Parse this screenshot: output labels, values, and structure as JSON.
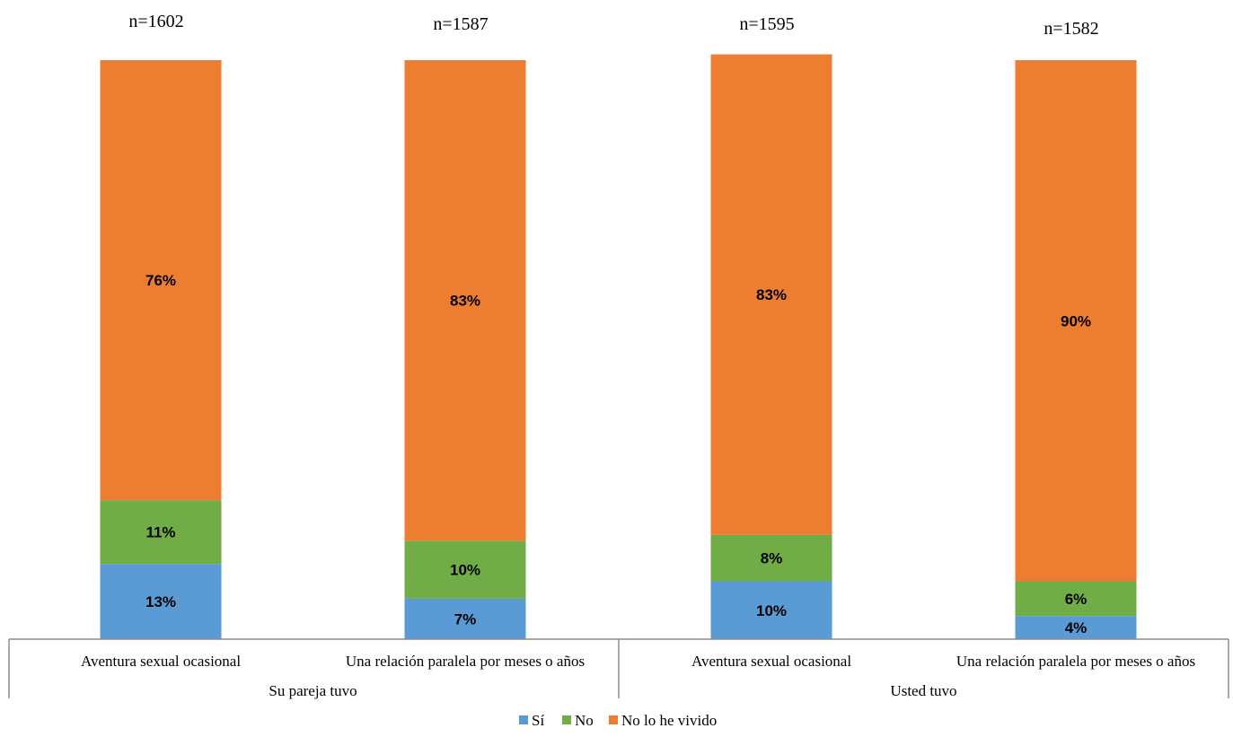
{
  "chart_data": {
    "type": "bar",
    "stacked": true,
    "percent_stacked": true,
    "categories": [
      "Aventura sexual ocasional",
      "Una relación paralela por meses o años",
      "Aventura sexual ocasional",
      "Una relación paralela por meses o años"
    ],
    "groups": [
      {
        "label": "Su pareja tuvo",
        "categories": [
          0,
          1
        ]
      },
      {
        "label": "Usted tuvo",
        "categories": [
          2,
          3
        ]
      }
    ],
    "n_labels": [
      "n=1602",
      "n=1587",
      "n=1595",
      "n=1582"
    ],
    "series": [
      {
        "name": "Sí",
        "color": "#5B9BD5",
        "values": [
          13,
          7,
          10,
          4
        ],
        "labels": [
          "13%",
          "7%",
          "10%",
          "4%"
        ]
      },
      {
        "name": "No",
        "color": "#70AD47",
        "values": [
          11,
          10,
          8,
          6
        ],
        "labels": [
          "11%",
          "10%",
          "8%",
          "6%"
        ]
      },
      {
        "name": "No lo he vivido",
        "color": "#ED7D31",
        "values": [
          76,
          83,
          83,
          90
        ],
        "labels": [
          "76%",
          "83%",
          "83%",
          "90%"
        ]
      }
    ],
    "ylim": [
      0,
      100
    ],
    "grid": false,
    "legend_position": "bottom"
  }
}
